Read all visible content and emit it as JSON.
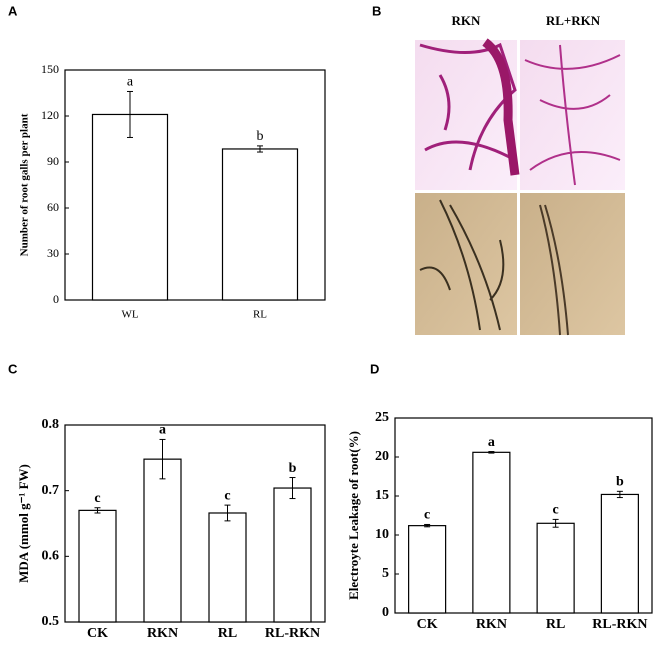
{
  "panel_labels": [
    "A",
    "B",
    "C",
    "D"
  ],
  "images": {
    "labels": [
      "RKN",
      "RL+RKN"
    ]
  },
  "chart_data": [
    {
      "type": "bar",
      "ylabel": "Number of root galls per plant",
      "categories": [
        "WL",
        "RL"
      ],
      "values": [
        121,
        98.5
      ],
      "errors": [
        15,
        2
      ],
      "letters": [
        "a",
        "b"
      ],
      "ylim": [
        0,
        150
      ],
      "yticks": [
        0,
        30,
        60,
        90,
        120,
        150
      ],
      "color": "#ffffff"
    },
    {
      "type": "bar",
      "ylabel": "MDA (mmol g⁻¹ FW)",
      "categories": [
        "CK",
        "RKN",
        "RL",
        "RL-RKN"
      ],
      "values": [
        0.67,
        0.748,
        0.666,
        0.704
      ],
      "errors": [
        0.004,
        0.03,
        0.012,
        0.016
      ],
      "letters": [
        "c",
        "a",
        "c",
        "b"
      ],
      "ylim": [
        0.5,
        0.8
      ],
      "yticks": [
        0.5,
        0.6,
        0.7,
        0.8
      ],
      "color": "#ffffff"
    },
    {
      "type": "bar",
      "ylabel": "Electroyte Leakage of root(%)",
      "categories": [
        "CK",
        "RKN",
        "RL",
        "RL-RKN"
      ],
      "values": [
        11.2,
        20.6,
        11.5,
        15.2
      ],
      "errors": [
        0.15,
        0.1,
        0.5,
        0.4
      ],
      "letters": [
        "c",
        "a",
        "c",
        "b"
      ],
      "ylim": [
        0,
        25
      ],
      "yticks": [
        0,
        5,
        10,
        15,
        20,
        25
      ],
      "color": "#ffffff"
    }
  ]
}
